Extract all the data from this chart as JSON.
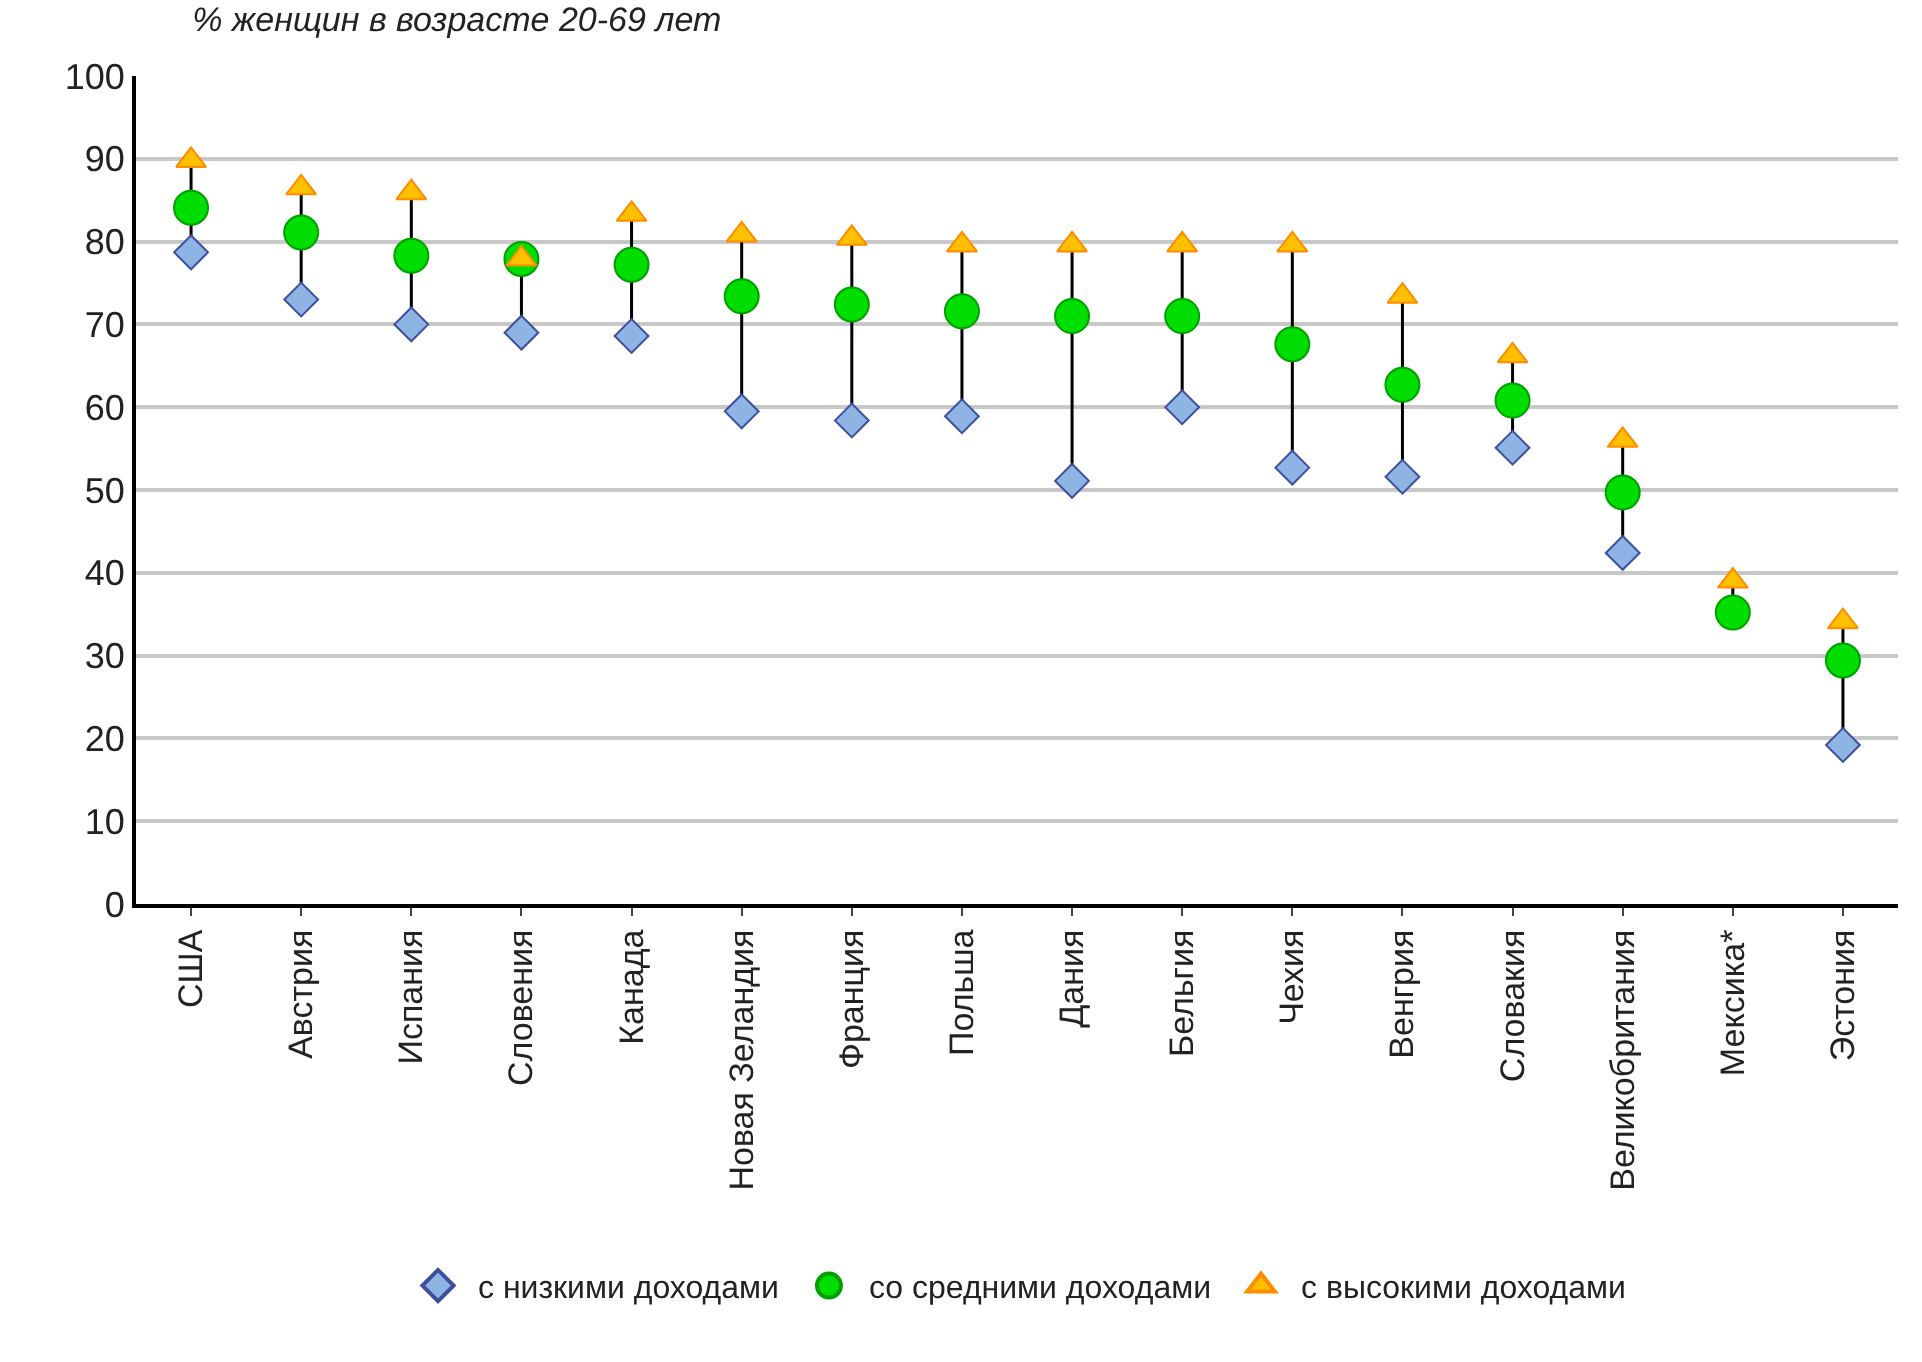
{
  "chart_data": {
    "type": "scatter",
    "title": "% женщин в возрасте 20-69 лет",
    "categories": [
      "США",
      "Австрия",
      "Испания",
      "Словения",
      "Канада",
      "Новая Зеландия",
      "Франция",
      "Польша",
      "Дания",
      "Бельгия",
      "Чехия",
      "Венгрия",
      "Словакия",
      "Великобритания",
      "Мексика*",
      "Эстония"
    ],
    "series": [
      {
        "name": "с низкими доходами",
        "color": "#8eb4e3",
        "marker": "diamond",
        "values": [
          78.7,
          73.0,
          70.0,
          69.0,
          68.6,
          59.5,
          58.4,
          58.9,
          51.1,
          60.0,
          52.7,
          51.6,
          55.1,
          42.4,
          null,
          19.2
        ]
      },
      {
        "name": "со средними доходами",
        "color": "#00dd00",
        "marker": "circle",
        "values": [
          84.1,
          81.1,
          78.3,
          77.9,
          77.2,
          73.4,
          72.4,
          71.6,
          71.0,
          71.0,
          67.6,
          62.7,
          60.8,
          49.7,
          35.2,
          29.4
        ]
      },
      {
        "name": "с высокими доходами",
        "color": "#ffc000",
        "marker": "triangle",
        "values": [
          89.8,
          86.5,
          85.9,
          77.9,
          83.3,
          80.8,
          80.4,
          79.6,
          79.6,
          79.6,
          79.6,
          73.4,
          66.2,
          56.0,
          39.0,
          34.1
        ]
      }
    ],
    "ylim": [
      0,
      100
    ],
    "yticks": [
      0,
      10,
      20,
      30,
      40,
      50,
      60,
      70,
      80,
      90,
      100
    ],
    "grid": "y",
    "legend": "bottom"
  }
}
